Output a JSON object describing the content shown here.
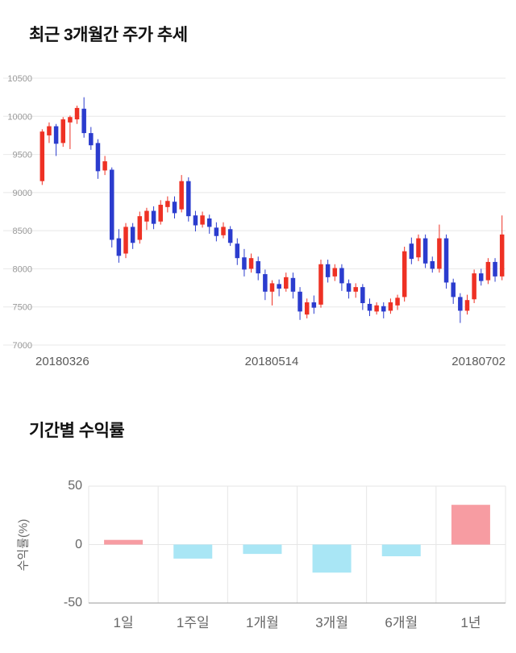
{
  "chart_data": [
    {
      "type": "candlestick",
      "title": "최근 3개월간 주가 추세",
      "ylim": [
        7000,
        10500
      ],
      "y_ticks": [
        10500,
        10000,
        9500,
        9000,
        8500,
        8000,
        7500,
        7000
      ],
      "x_ticks": [
        "20180326",
        "20180514",
        "20180702"
      ],
      "up_color": "#ee3124",
      "down_color": "#2b3cce",
      "grid_color": "#e8e8e8",
      "tick_color": "#999999",
      "candles": [
        [
          9150,
          9830,
          9100,
          9800
        ],
        [
          9750,
          9920,
          9650,
          9870
        ],
        [
          9870,
          9900,
          9480,
          9640
        ],
        [
          9650,
          9990,
          9600,
          9960
        ],
        [
          9920,
          10010,
          9570,
          9990
        ],
        [
          9960,
          10140,
          9900,
          10110
        ],
        [
          10100,
          10250,
          9720,
          9780
        ],
        [
          9780,
          9860,
          9560,
          9620
        ],
        [
          9650,
          9700,
          9180,
          9280
        ],
        [
          9290,
          9480,
          9230,
          9410
        ],
        [
          9300,
          9330,
          8280,
          8380
        ],
        [
          8400,
          8520,
          8080,
          8170
        ],
        [
          8200,
          8600,
          8140,
          8550
        ],
        [
          8550,
          8600,
          8260,
          8340
        ],
        [
          8380,
          8750,
          8330,
          8690
        ],
        [
          8620,
          8800,
          8510,
          8760
        ],
        [
          8760,
          8820,
          8520,
          8590
        ],
        [
          8620,
          8900,
          8580,
          8840
        ],
        [
          8810,
          8950,
          8740,
          8890
        ],
        [
          8880,
          8950,
          8660,
          8730
        ],
        [
          8780,
          9230,
          8740,
          9150
        ],
        [
          9150,
          9200,
          8620,
          8690
        ],
        [
          8700,
          8760,
          8490,
          8570
        ],
        [
          8580,
          8750,
          8540,
          8700
        ],
        [
          8660,
          8710,
          8460,
          8550
        ],
        [
          8540,
          8610,
          8360,
          8430
        ],
        [
          8440,
          8610,
          8400,
          8550
        ],
        [
          8520,
          8560,
          8300,
          8340
        ],
        [
          8330,
          8400,
          8050,
          8140
        ],
        [
          8150,
          8260,
          7900,
          7990
        ],
        [
          8000,
          8200,
          7950,
          8140
        ],
        [
          8100,
          8160,
          7850,
          7940
        ],
        [
          7930,
          7990,
          7590,
          7700
        ],
        [
          7700,
          7850,
          7520,
          7810
        ],
        [
          7800,
          7860,
          7640,
          7740
        ],
        [
          7740,
          7950,
          7700,
          7890
        ],
        [
          7880,
          7950,
          7610,
          7700
        ],
        [
          7700,
          7760,
          7330,
          7440
        ],
        [
          7400,
          7610,
          7350,
          7560
        ],
        [
          7560,
          7650,
          7410,
          7490
        ],
        [
          7530,
          8120,
          7490,
          8060
        ],
        [
          8060,
          8120,
          7820,
          7890
        ],
        [
          7900,
          8060,
          7840,
          8010
        ],
        [
          8010,
          8060,
          7710,
          7810
        ],
        [
          7810,
          7860,
          7610,
          7700
        ],
        [
          7700,
          7810,
          7620,
          7760
        ],
        [
          7760,
          7800,
          7460,
          7550
        ],
        [
          7540,
          7610,
          7380,
          7450
        ],
        [
          7440,
          7560,
          7400,
          7520
        ],
        [
          7510,
          7560,
          7350,
          7440
        ],
        [
          7450,
          7610,
          7410,
          7560
        ],
        [
          7520,
          7660,
          7460,
          7620
        ],
        [
          7630,
          8290,
          7570,
          8230
        ],
        [
          8330,
          8410,
          8060,
          8130
        ],
        [
          8150,
          8450,
          8100,
          8400
        ],
        [
          8400,
          8450,
          8010,
          8070
        ],
        [
          8100,
          8160,
          7950,
          8000
        ],
        [
          8000,
          8580,
          7950,
          8400
        ],
        [
          8400,
          8450,
          7740,
          7820
        ],
        [
          7820,
          7870,
          7540,
          7630
        ],
        [
          7630,
          7680,
          7290,
          7450
        ],
        [
          7450,
          7660,
          7400,
          7590
        ],
        [
          7600,
          7990,
          7550,
          7940
        ],
        [
          7940,
          8000,
          7780,
          7840
        ],
        [
          7850,
          8140,
          7800,
          8090
        ],
        [
          8090,
          8140,
          7830,
          7900
        ],
        [
          7900,
          8700,
          7850,
          8450
        ]
      ]
    },
    {
      "type": "bar",
      "title": "기간별 수익률",
      "ylabel": "수익률(%)",
      "categories": [
        "1일",
        "1주일",
        "1개월",
        "3개월",
        "6개월",
        "1년"
      ],
      "values": [
        4,
        -12,
        -8,
        -24,
        -10,
        34
      ],
      "ylim": [
        -50,
        50
      ],
      "y_ticks": [
        50,
        0,
        -50
      ],
      "positive_color": "#f79ca2",
      "negative_color": "#a9e6f5",
      "grid_color": "#e6e6e6",
      "axis_color": "#999999"
    }
  ]
}
